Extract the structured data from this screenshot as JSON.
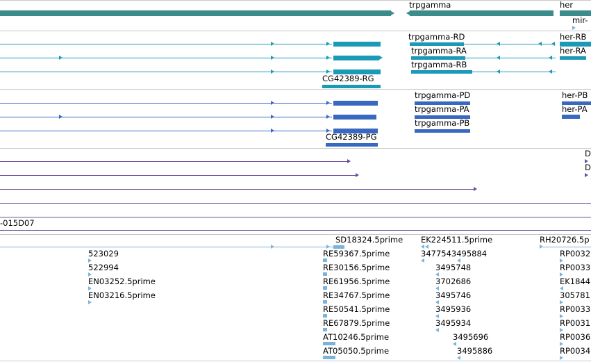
{
  "colors": {
    "gene": "#3c8c8c",
    "transcript": "#1a9ab6",
    "protein": "#3968c0",
    "purple": "#6a4ca0",
    "est": "#7ab4dc",
    "separator": "#c8c8c8"
  },
  "gene_track": {
    "genes": [
      {
        "id": "gene-cg42389",
        "label": ""
      },
      {
        "id": "gene-trpgamma",
        "label": "trpgamma"
      },
      {
        "id": "gene-her",
        "label": "her"
      },
      {
        "id": "gene-mir",
        "label": "mir-"
      }
    ]
  },
  "transcripts": {
    "cg_label": "CG42389-RG",
    "labels": [
      "trpgamma-RD",
      "trpgamma-RA",
      "trpgamma-RB",
      "her-RB",
      "her-RA"
    ]
  },
  "proteins": {
    "cg_label": "CG42389-PG",
    "labels": [
      "trpgamma-PD",
      "trpgamma-PA",
      "trpgamma-PB",
      "her-PB",
      "her-PA"
    ]
  },
  "purple_track": {
    "labels": [
      "D",
      "D"
    ]
  },
  "clone_track": {
    "label": "-015D07"
  },
  "est_track": {
    "col1": [
      "523029",
      "522994",
      "EN03252.5prime",
      "EN03216.5prime"
    ],
    "col2_top": "SD18324.5prime",
    "col2": [
      "RE59367.5prime",
      "RE30156.5prime",
      "RE61956.5prime",
      "RE34767.5prime",
      "RE50541.5prime",
      "RE67879.5prime",
      "AT10246.5prime",
      "AT05050.5prime"
    ],
    "col3_top": "EK224511.5prime",
    "col3": [
      "3477543495884",
      "3495748",
      "3702686",
      "3495746",
      "3495936",
      "3495934",
      "3495696",
      "3495886"
    ],
    "col4_top": "RH20726.5p",
    "col4": [
      "RP0032",
      "RP0033",
      "EK1844",
      "305781",
      "RP0033",
      "RP0031",
      "RP0036",
      "RP0034"
    ]
  }
}
